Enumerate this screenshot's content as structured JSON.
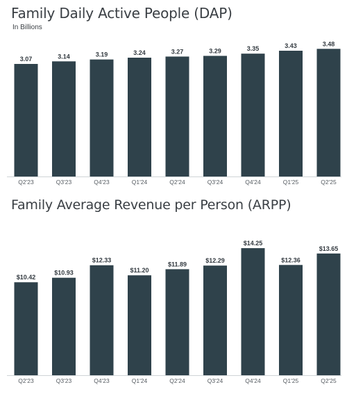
{
  "chart_data": [
    {
      "type": "bar",
      "title": "Family Daily Active People (DAP)",
      "subtitle": "In Billions",
      "categories": [
        "Q2'23",
        "Q3'23",
        "Q4'23",
        "Q1'24",
        "Q2'24",
        "Q3'24",
        "Q4'24",
        "Q1'25",
        "Q2'25"
      ],
      "values": [
        3.07,
        3.14,
        3.19,
        3.24,
        3.27,
        3.29,
        3.35,
        3.43,
        3.48
      ],
      "value_labels": [
        "3.07",
        "3.14",
        "3.19",
        "3.24",
        "3.27",
        "3.29",
        "3.35",
        "3.43",
        "3.48"
      ],
      "ylim": [
        0,
        3.6
      ],
      "grid": false,
      "bar_color": "#2f424b"
    },
    {
      "type": "bar",
      "title": "Family Average Revenue per Person (ARPP)",
      "categories": [
        "Q2'23",
        "Q3'23",
        "Q4'23",
        "Q1'24",
        "Q2'24",
        "Q3'24",
        "Q4'24",
        "Q1'25",
        "Q2'25"
      ],
      "values": [
        10.42,
        10.93,
        12.33,
        11.2,
        11.89,
        12.29,
        14.25,
        12.36,
        13.65
      ],
      "value_labels": [
        "$10.42",
        "$10.93",
        "$12.33",
        "$11.20",
        "$11.89",
        "$12.29",
        "$14.25",
        "$12.36",
        "$13.65"
      ],
      "ylim": [
        0,
        14.8
      ],
      "grid": false,
      "bar_color": "#2f424b"
    }
  ]
}
